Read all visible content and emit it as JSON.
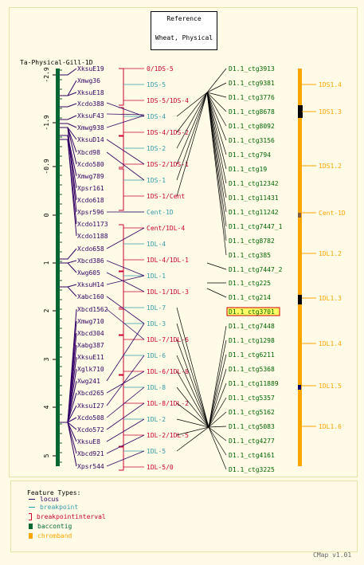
{
  "reference": {
    "line1": "Reference",
    "line2": "Wheat, Physical"
  },
  "map_title": "Ta-Physical-Gill-1D",
  "axis_ticks": [
    "-2.9",
    "-1.9",
    "-0.9",
    "0",
    "1",
    "2",
    "3",
    "4",
    "5"
  ],
  "loci": [
    "XksuE19",
    "Xmwg36",
    "XksuE18",
    "Xcdo388",
    "XksuF43",
    "Xmwg938",
    "XksuD14",
    "Xbcd98",
    "Xcdo580",
    "Xmwg789",
    "Xpsr161",
    "Xcdo618",
    "Xpsr596",
    "Xcdo1173",
    "Xcdo1188",
    "Xcdo658",
    "Xbcd386",
    "Xwg605",
    "XksuH14",
    "Xabc160",
    "Xbcd1562",
    "Xmwg710",
    "Xbcd304",
    "Xabg387",
    "XksuE11",
    "Xglk710",
    "Xwg241",
    "Xbcd265",
    "XksuI27",
    "Xcdo508",
    "Xcdo572",
    "XksuE8",
    "Xbcd921",
    "Xpsr544"
  ],
  "intervals": [
    {
      "label": "0/1DS-5",
      "color": "#cc0033"
    },
    {
      "label": "1DS-5",
      "color": "#3399aa"
    },
    {
      "label": "1DS-5/1DS-4",
      "color": "#cc0033"
    },
    {
      "label": "1DS-4",
      "color": "#3399aa"
    },
    {
      "label": "1DS-4/1DS-2",
      "color": "#cc0033"
    },
    {
      "label": "1DS-2",
      "color": "#3399aa"
    },
    {
      "label": "1DS-2/1DS-1",
      "color": "#cc0033"
    },
    {
      "label": "1DS-1",
      "color": "#3399aa"
    },
    {
      "label": "1DS-1/Cent",
      "color": "#cc0033"
    },
    {
      "label": "Cent-1D",
      "color": "#3399aa"
    },
    {
      "label": "Cent/1DL-4",
      "color": "#cc0033"
    },
    {
      "label": "1DL-4",
      "color": "#3399aa"
    },
    {
      "label": "1DL-4/1DL-1",
      "color": "#cc0033"
    },
    {
      "label": "1DL-1",
      "color": "#3399aa"
    },
    {
      "label": "1DL-1/1DL-3",
      "color": "#cc0033"
    },
    {
      "label": "1DL-7",
      "color": "#3399aa"
    },
    {
      "label": "1DL-3",
      "color": "#3399aa"
    },
    {
      "label": "1DL-7/1DL-6",
      "color": "#cc0033"
    },
    {
      "label": "1DL-6",
      "color": "#3399aa"
    },
    {
      "label": "1DL-6/1DL-8",
      "color": "#cc0033"
    },
    {
      "label": "1DL-8",
      "color": "#3399aa"
    },
    {
      "label": "1DL-8/1DL-2",
      "color": "#cc0033"
    },
    {
      "label": "1DL-2",
      "color": "#3399aa"
    },
    {
      "label": "1DL-2/1DL-5",
      "color": "#cc0033"
    },
    {
      "label": "1DL-5",
      "color": "#3399aa"
    },
    {
      "label": "1DL-5/0",
      "color": "#cc0033"
    }
  ],
  "contigs": [
    "D1.1_ctg3913",
    "D1.1_ctg9381",
    "D1.1_ctg3776",
    "D1.1_ctg8678",
    "D1.1_ctg8092",
    "D1.1_ctg3156",
    "D1.1_ctg794",
    "D1.1_ctg19",
    "D1.1_ctg12342",
    "D1.1_ctg11431",
    "D1.1_ctg11242",
    "D1.1_ctg7447_1",
    "D1.1_ctg8782",
    "D1.1_ctg385",
    "D1.1_ctg7447_2",
    "D1.1_ctg225",
    "D1.1_ctg214",
    "D1.1_ctg3701",
    "D1.1_ctg7448",
    "D1.1_ctg1298",
    "D1.1_ctg6211",
    "D1.1_ctg5368",
    "D1.1_ctg11889",
    "D1.1_ctg5357",
    "D1.1_ctg5162",
    "D1.1_ctg5083",
    "D1.1_ctg4277",
    "D1.1_ctg4161",
    "D1.1_ctg3225"
  ],
  "highlighted_contig": "D1.1_ctg3701",
  "bands": [
    {
      "label": "1DS1.4",
      "color": "#ffa500"
    },
    {
      "label": "1DS1.3",
      "color": "#ffa500"
    },
    {
      "label": "1DS1.2",
      "color": "#ffa500"
    },
    {
      "label": "Cent-1D",
      "color": "#ffa500"
    },
    {
      "label": "1DL1.2",
      "color": "#ffa500"
    },
    {
      "label": "1DL1.3",
      "color": "#ffa500"
    },
    {
      "label": "1DL1.4",
      "color": "#ffa500"
    },
    {
      "label": "1DL1.5",
      "color": "#ffa500"
    },
    {
      "label": "1DL1.6",
      "color": "#ffa500"
    }
  ],
  "legend": {
    "title": "Feature Types:",
    "items": [
      {
        "label": "locus",
        "color": "#330066",
        "icon": "line-icon"
      },
      {
        "label": "breakpoint",
        "color": "#3399aa",
        "icon": "line-icon"
      },
      {
        "label": "breakpointinterval",
        "color": "#cc0033",
        "icon": "bracket-icon"
      },
      {
        "label": "baccontig",
        "color": "#006633",
        "icon": "bar-icon"
      },
      {
        "label": "chromband",
        "color": "#ffa500",
        "icon": "bar-icon"
      }
    ]
  },
  "footer": "CMap v1.01",
  "colors": {
    "locus": "#330066",
    "contig_text": "#006600",
    "axis": "#000000",
    "tick": "#cc9933",
    "background": "#fffbe6"
  }
}
